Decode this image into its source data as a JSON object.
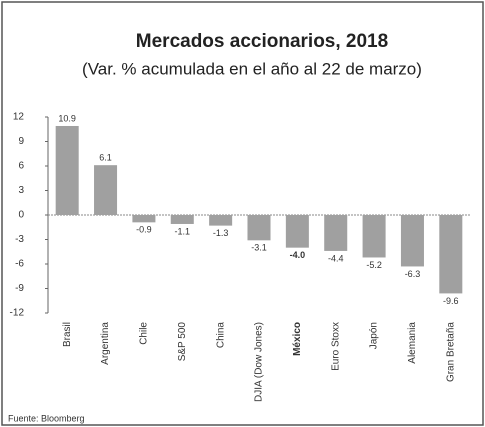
{
  "chart_data": {
    "type": "bar",
    "title": "Mercados accionarios, 2018",
    "subtitle": "(Var. % acumulada en el año al 22 de marzo)",
    "source": "Fuente: Bloomberg",
    "categories": [
      "Brasil",
      "Argentina",
      "Chile",
      "S&P 500",
      "China",
      "DJIA (Dow Jones)",
      "México",
      "Euro Stoxx",
      "Japón",
      "Alemania",
      "Gran Bretaña"
    ],
    "values": [
      10.9,
      6.1,
      -0.9,
      -1.1,
      -1.3,
      -3.1,
      -4.0,
      -4.4,
      -5.2,
      -6.3,
      -9.6
    ],
    "value_labels": [
      "10.9",
      "6.1",
      "-0.9",
      "-1.1",
      "-1.3",
      "-3.1",
      "-4.0",
      "-4.4",
      "-5.2",
      "-6.3",
      "-9.6"
    ],
    "color": "#a0a0a0",
    "ylim": [
      -12,
      12
    ],
    "yticks": [
      12,
      9,
      6,
      3,
      0,
      -3,
      -6,
      -9,
      -12
    ],
    "grid": false
  }
}
